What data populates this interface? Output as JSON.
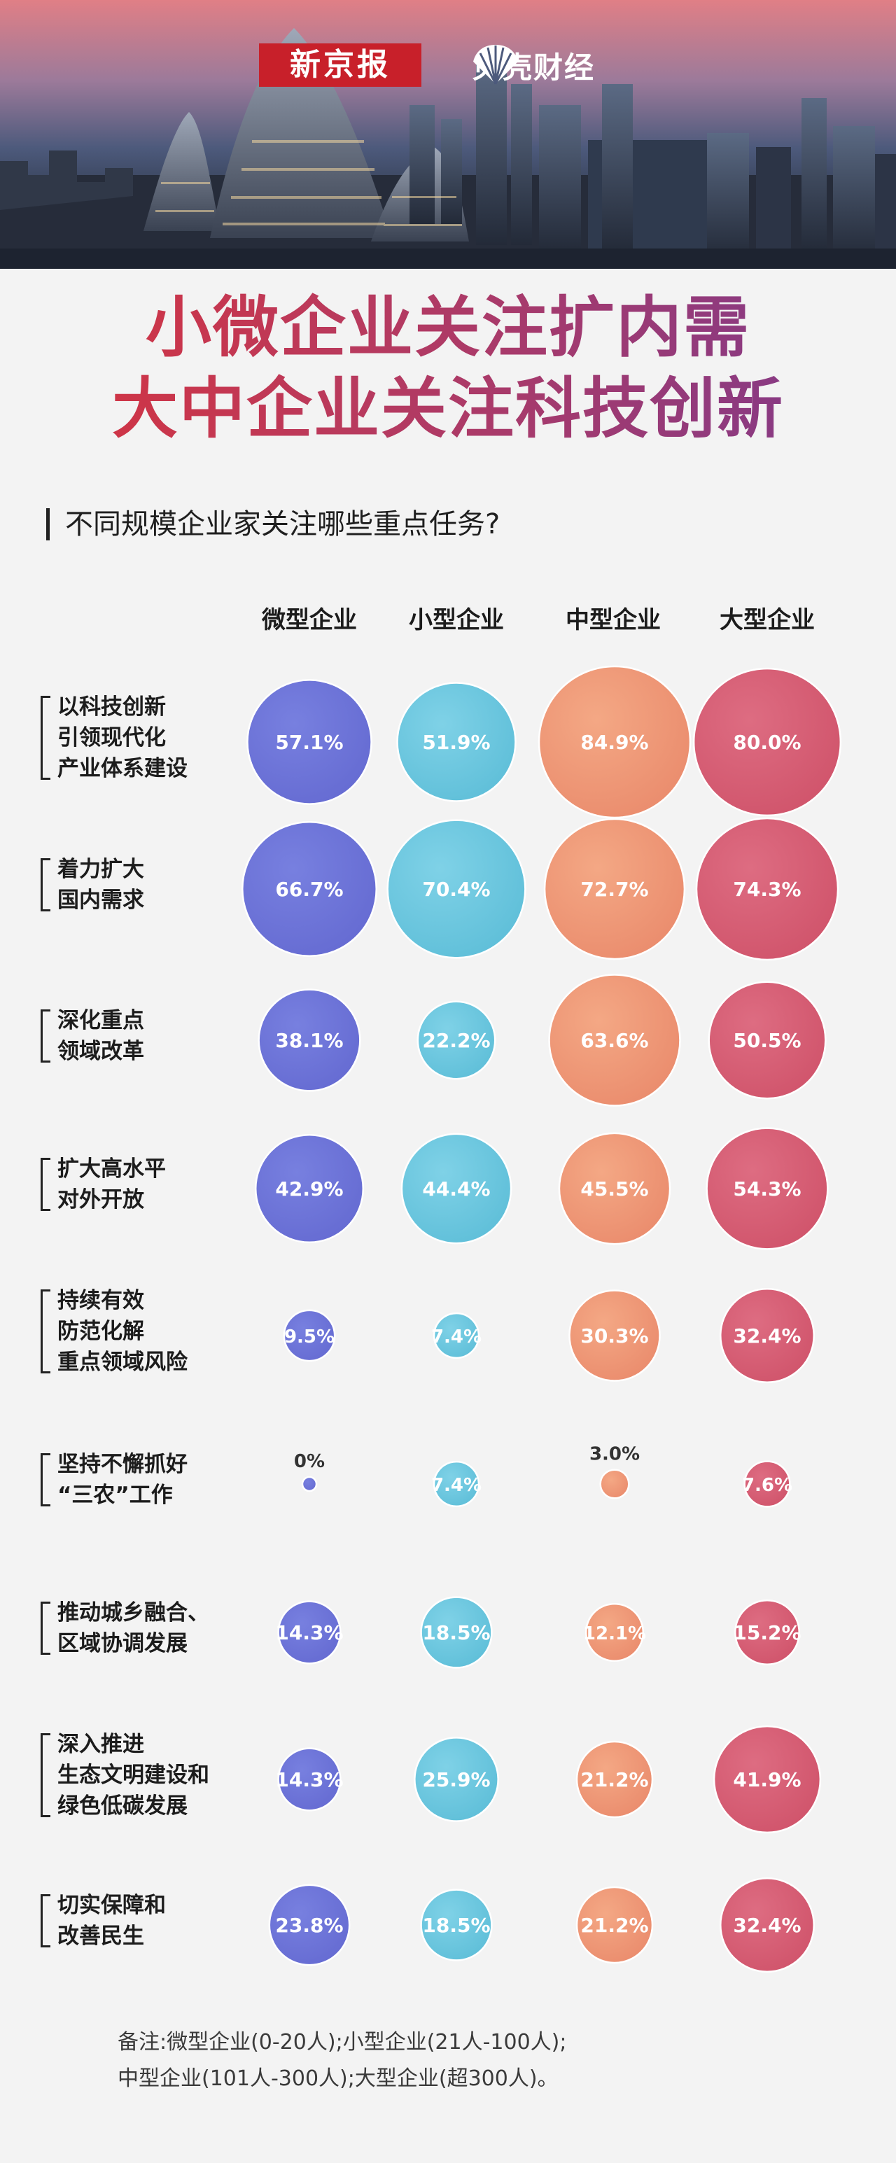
{
  "header": {
    "brand_1": "新京报",
    "brand_2": "贝壳财经"
  },
  "headline": {
    "line_1": "小微企业关注扩内需",
    "line_2": "大中企业关注科技创新"
  },
  "chart_data": {
    "type": "bubble-grid",
    "title": "不同规模企业家关注哪些重点任务?",
    "unit": "%",
    "categories": [
      "微型企业",
      "小型企业",
      "中型企业",
      "大型企业"
    ],
    "rows": [
      {
        "label_lines": [
          "以科技创新",
          "引领现代化",
          "产业体系建设"
        ],
        "values": [
          57.1,
          51.9,
          84.9,
          80.0
        ]
      },
      {
        "label_lines": [
          "着力扩大",
          "国内需求"
        ],
        "values": [
          66.7,
          70.4,
          72.7,
          74.3
        ]
      },
      {
        "label_lines": [
          "深化重点",
          "领域改革"
        ],
        "values": [
          38.1,
          22.2,
          63.6,
          50.5
        ]
      },
      {
        "label_lines": [
          "扩大高水平",
          "对外开放"
        ],
        "values": [
          42.9,
          44.4,
          45.5,
          54.3
        ]
      },
      {
        "label_lines": [
          "持续有效",
          "防范化解",
          "重点领域风险"
        ],
        "values": [
          9.5,
          7.4,
          30.3,
          32.4
        ]
      },
      {
        "label_lines": [
          "坚持不懈抓好",
          "“三农”工作"
        ],
        "values": [
          0,
          7.4,
          3.0,
          7.6
        ]
      },
      {
        "label_lines": [
          "推动城乡融合、",
          "区域协调发展"
        ],
        "values": [
          14.3,
          18.5,
          12.1,
          15.2
        ]
      },
      {
        "label_lines": [
          "深入推进",
          "生态文明建设和",
          "绿色低碳发展"
        ],
        "values": [
          14.3,
          25.9,
          21.2,
          41.9
        ]
      },
      {
        "label_lines": [
          "切实保障和",
          "改善民生"
        ],
        "values": [
          23.8,
          18.5,
          21.2,
          32.4
        ]
      }
    ],
    "value_labels": [
      [
        "57.1%",
        "51.9%",
        "84.9%",
        "80.0%"
      ],
      [
        "66.7%",
        "70.4%",
        "72.7%",
        "74.3%"
      ],
      [
        "38.1%",
        "22.2%",
        "63.6%",
        "50.5%"
      ],
      [
        "42.9%",
        "44.4%",
        "45.5%",
        "54.3%"
      ],
      [
        "9.5%",
        "7.4%",
        "30.3%",
        "32.4%"
      ],
      [
        "0%",
        "7.4%",
        "3.0%",
        "7.6%"
      ],
      [
        "14.3%",
        "18.5%",
        "12.1%",
        "15.2%"
      ],
      [
        "14.3%",
        "25.9%",
        "21.2%",
        "41.9%"
      ],
      [
        "23.8%",
        "18.5%",
        "21.2%",
        "32.4%"
      ]
    ],
    "colors": [
      "#5a60cf",
      "#52bad6",
      "#e98362",
      "#cd4760"
    ]
  },
  "note": {
    "line_1": "备注:微型企业(0-20人);小型企业(21人-100人);",
    "line_2": "中型企业(101人-300人);大型企业(超300人)。"
  }
}
